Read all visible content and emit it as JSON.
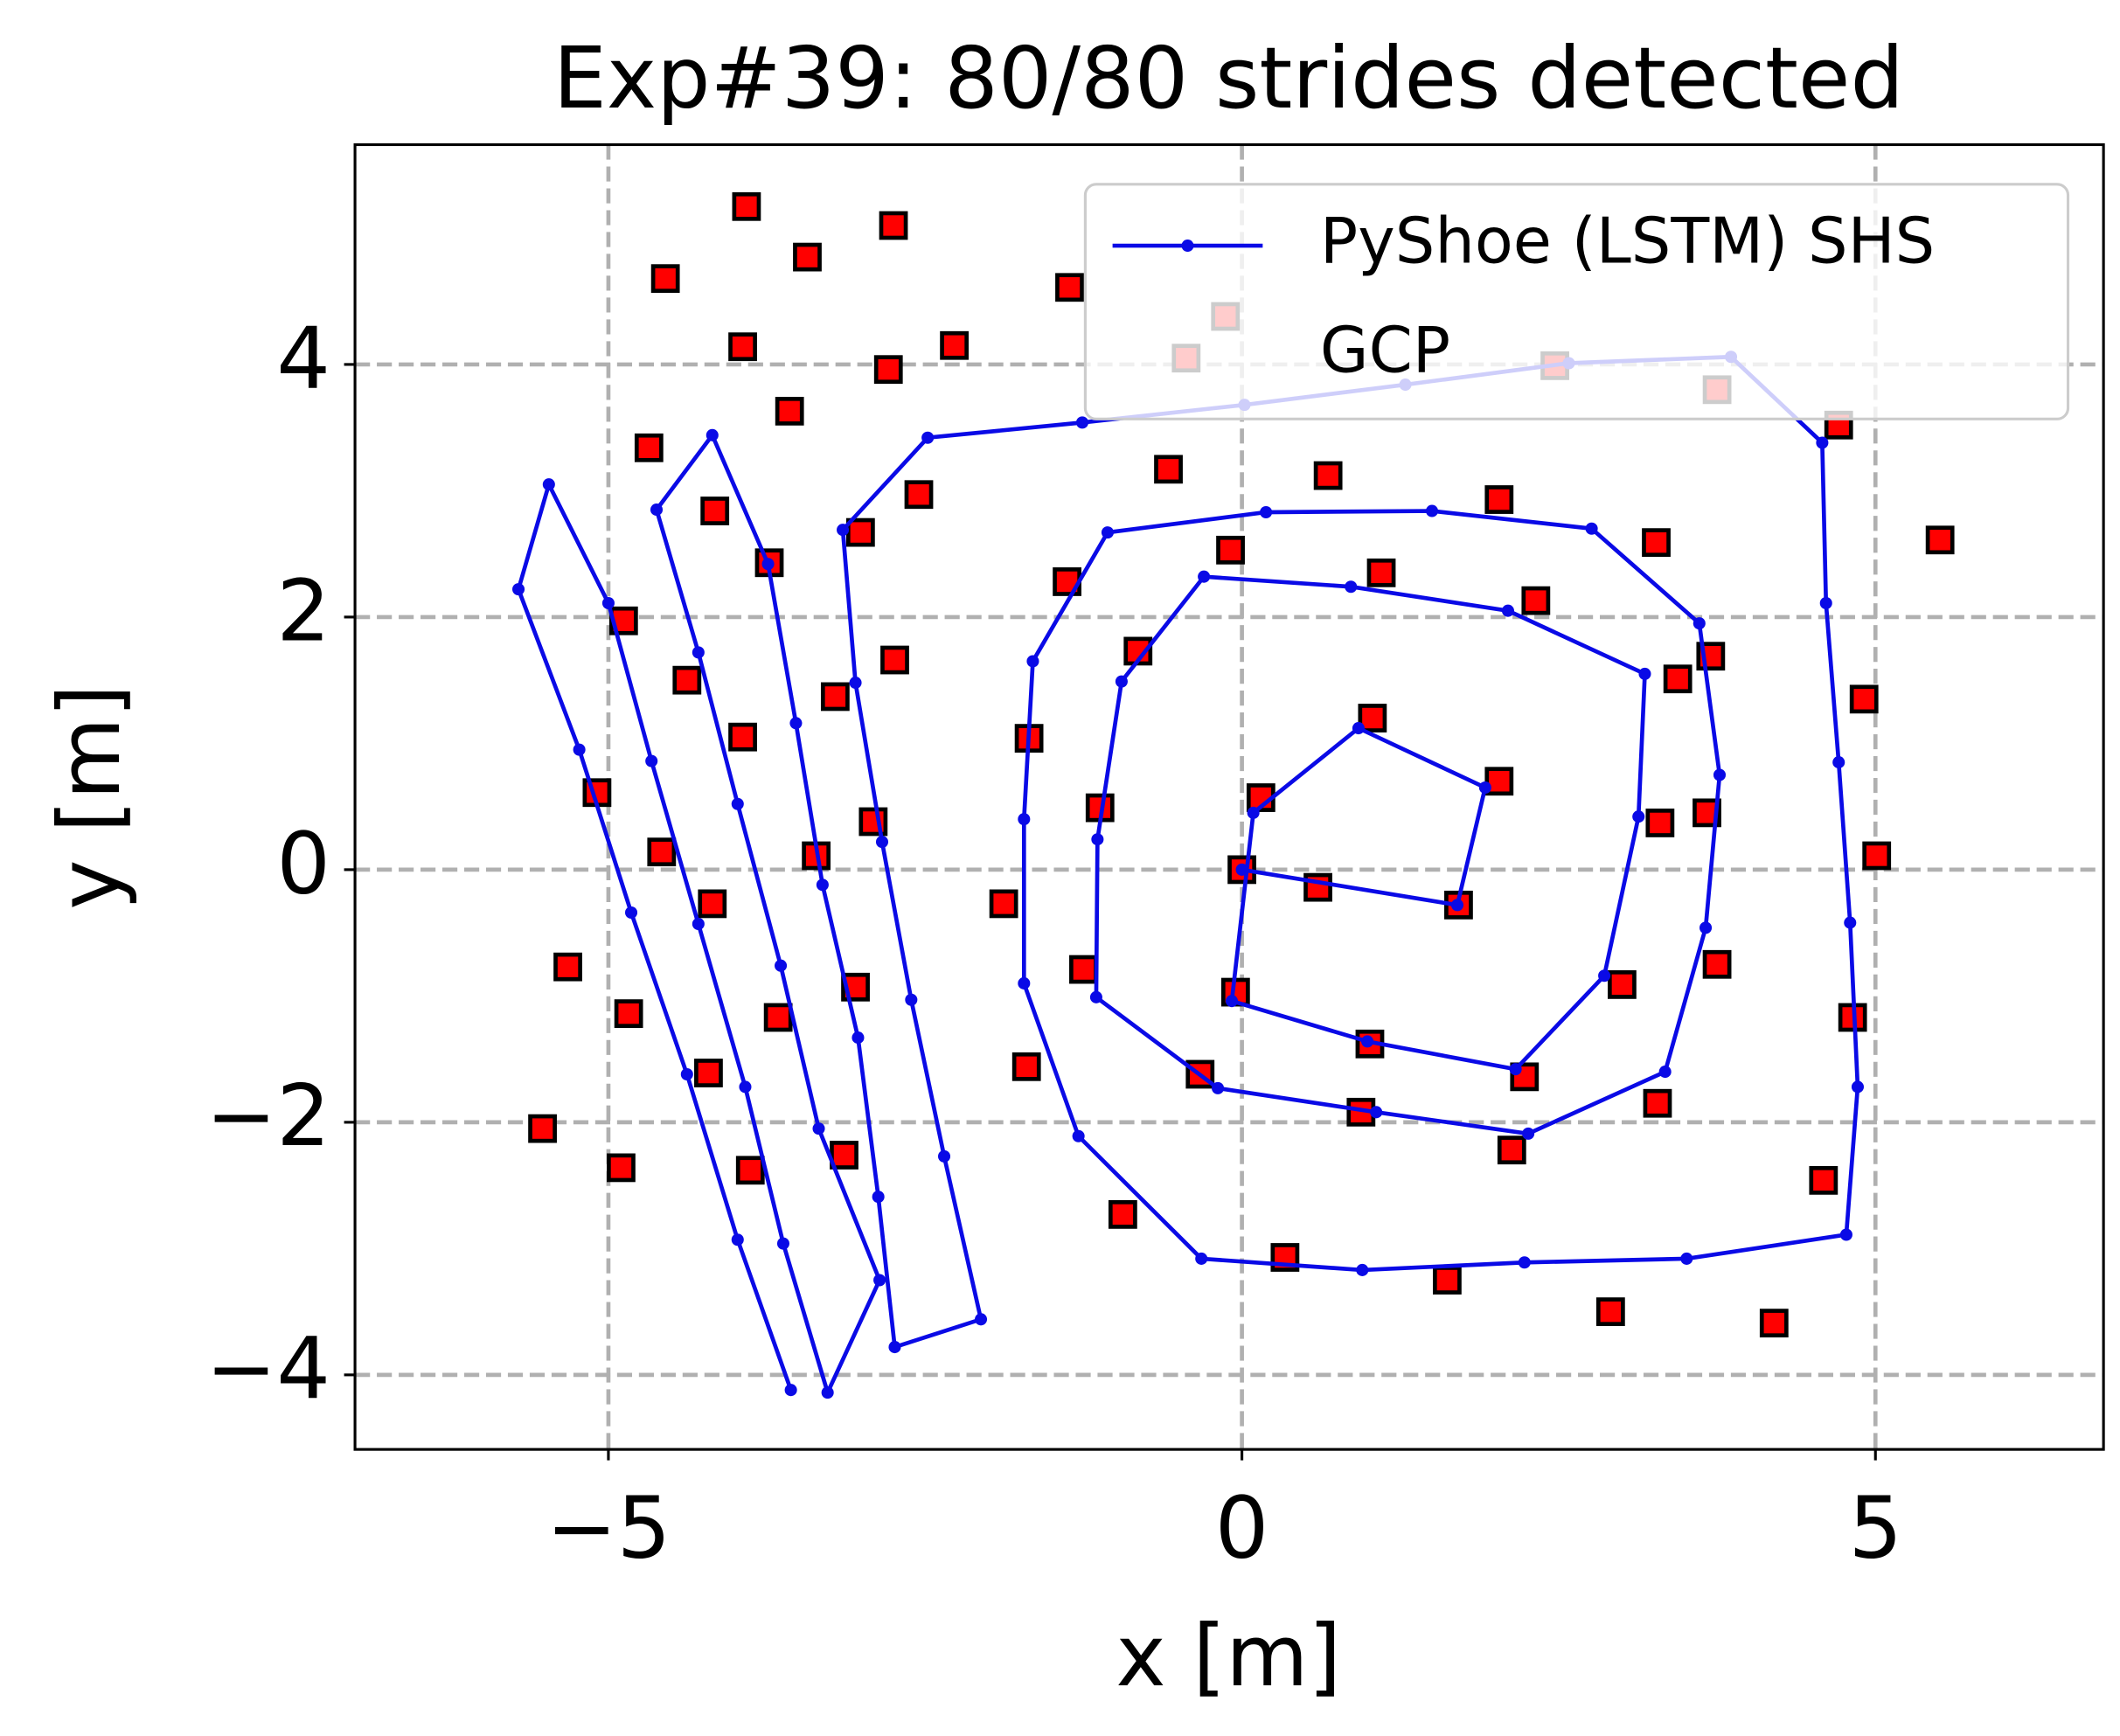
{
  "chart_data": {
    "type": "line",
    "title": "Exp#39: 80/80 strides detected",
    "xlabel": "x [m]",
    "ylabel": "y [m]",
    "xlim": [
      -7.0,
      6.8
    ],
    "ylim": [
      -4.59,
      5.74
    ],
    "xticks": [
      {
        "value": -5,
        "label": "−5"
      },
      0,
      5
    ],
    "yticks": [
      {
        "value": -4,
        "label": "−4"
      },
      {
        "value": -2,
        "label": "−2"
      },
      0,
      2,
      4
    ],
    "grid": true,
    "legend": "upper right",
    "series": [
      {
        "name": "PyShoe (LSTM) SHS",
        "type": "line",
        "color": "#0a0ae6",
        "x": [
          0,
          1.7,
          1.92,
          0.92,
          0.09,
          -0.08,
          0.99,
          2.16,
          2.86,
          3.13,
          3.18,
          2.1,
          0.86,
          -0.3,
          -0.95,
          -1.14,
          -1.15,
          -0.19,
          1.06,
          2.26,
          3.34,
          3.66,
          3.77,
          3.61,
          2.76,
          1.5,
          0.19,
          -1.06,
          -1.65,
          -1.72,
          -1.72,
          -1.29,
          -0.32,
          0.95,
          2.23,
          3.51,
          4.77,
          4.86,
          4.8,
          4.71,
          4.61,
          4.58,
          3.86,
          2.58,
          1.29,
          0.02,
          -1.26,
          -2.48,
          -3.15,
          -3.05,
          -2.84,
          -2.61,
          -2.35,
          -2.06,
          -2.74,
          -2.87,
          -3.03,
          -3.31,
          -3.52,
          -3.74,
          -4.18,
          -4.62,
          -4.29,
          -3.98,
          -3.64,
          -3.34,
          -2.86,
          -3.27,
          -3.62,
          -3.92,
          -4.29,
          -4.66,
          -5.0,
          -5.47,
          -5.71,
          -5.23,
          -4.82,
          -4.38,
          -3.98,
          -3.56
        ],
        "values": [
          0,
          -0.28,
          0.65,
          1.12,
          0.45,
          -1.04,
          -1.36,
          -1.58,
          -0.84,
          0.42,
          1.55,
          2.05,
          2.24,
          2.32,
          1.49,
          0.24,
          -1.01,
          -1.73,
          -1.92,
          -2.09,
          -1.6,
          -0.46,
          0.75,
          1.95,
          2.7,
          2.84,
          2.83,
          2.67,
          1.65,
          0.4,
          -0.9,
          -2.11,
          -3.08,
          -3.17,
          -3.11,
          -3.08,
          -2.89,
          -1.72,
          -0.42,
          0.85,
          2.11,
          3.38,
          4.06,
          4.01,
          3.84,
          3.68,
          3.54,
          3.42,
          2.69,
          1.48,
          0.22,
          -1.03,
          -2.27,
          -3.56,
          -3.78,
          -2.59,
          -1.33,
          -0.12,
          1.16,
          2.42,
          3.44,
          2.85,
          1.72,
          0.52,
          -0.76,
          -2.05,
          -3.25,
          -4.14,
          -2.96,
          -1.72,
          -0.43,
          0.86,
          2.11,
          3.05,
          2.22,
          0.95,
          -0.34,
          -1.62,
          -2.93,
          -4.12
        ]
      },
      {
        "name": "GCP",
        "type": "scatter",
        "color": "#ff0000",
        "edgecolor": "#000000",
        "x": [
          -3.91,
          -2.75,
          -3.43,
          -4.55,
          -1.36,
          -0.13,
          -3.94,
          -2.27,
          -2.79,
          -0.44,
          2.47,
          3.75,
          4.71,
          -3.57,
          -4.68,
          -0.58,
          0.68,
          -2.55,
          2.03,
          -4.16,
          5.51,
          -3.01,
          3.27,
          -0.09,
          -3.73,
          1.1,
          -1.38,
          2.32,
          -4.88,
          3.7,
          -0.82,
          -2.74,
          3.44,
          -4.38,
          4.91,
          -3.21,
          1.03,
          -3.94,
          -1.68,
          0.15,
          2.03,
          -5.09,
          -1.12,
          3.67,
          -2.91,
          3.3,
          -4.58,
          -3.36,
          5.01,
          0,
          0.6,
          -1.88,
          -4.18,
          1.71,
          -5.32,
          3.75,
          -1.25,
          -3.05,
          -0.05,
          3.0,
          -4.84,
          -3.66,
          4.82,
          1.01,
          -1.7,
          -4.21,
          -0.33,
          2.23,
          3.28,
          0.94,
          2.13,
          -3.14,
          -5.52,
          -4.9,
          -3.88,
          4.59,
          -0.94,
          0.34,
          1.62,
          2.91,
          4.2
        ],
        "values": [
          5.25,
          5.1,
          4.85,
          4.68,
          4.61,
          4.38,
          4.14,
          4.15,
          3.96,
          4.05,
          3.99,
          3.8,
          3.52,
          3.63,
          3.34,
          3.17,
          3.12,
          2.97,
          2.93,
          2.84,
          2.61,
          2.67,
          2.59,
          2.53,
          2.43,
          2.35,
          2.28,
          2.13,
          1.97,
          1.69,
          1.73,
          1.66,
          1.51,
          1.5,
          1.35,
          1.37,
          1.2,
          1.05,
          1.04,
          0.57,
          0.7,
          0.61,
          0.49,
          0.45,
          0.38,
          0.37,
          0.14,
          0.11,
          0.11,
          0,
          -0.14,
          -0.27,
          -0.27,
          -0.28,
          -0.77,
          -0.75,
          -0.79,
          -0.93,
          -0.97,
          -0.91,
          -1.14,
          -1.17,
          -1.17,
          -1.38,
          -1.56,
          -1.61,
          -1.62,
          -1.64,
          -1.85,
          -1.92,
          -2.22,
          -2.26,
          -2.05,
          -2.36,
          -2.38,
          -2.46,
          -2.73,
          -3.07,
          -3.25,
          -3.5,
          -3.59
        ]
      }
    ]
  }
}
